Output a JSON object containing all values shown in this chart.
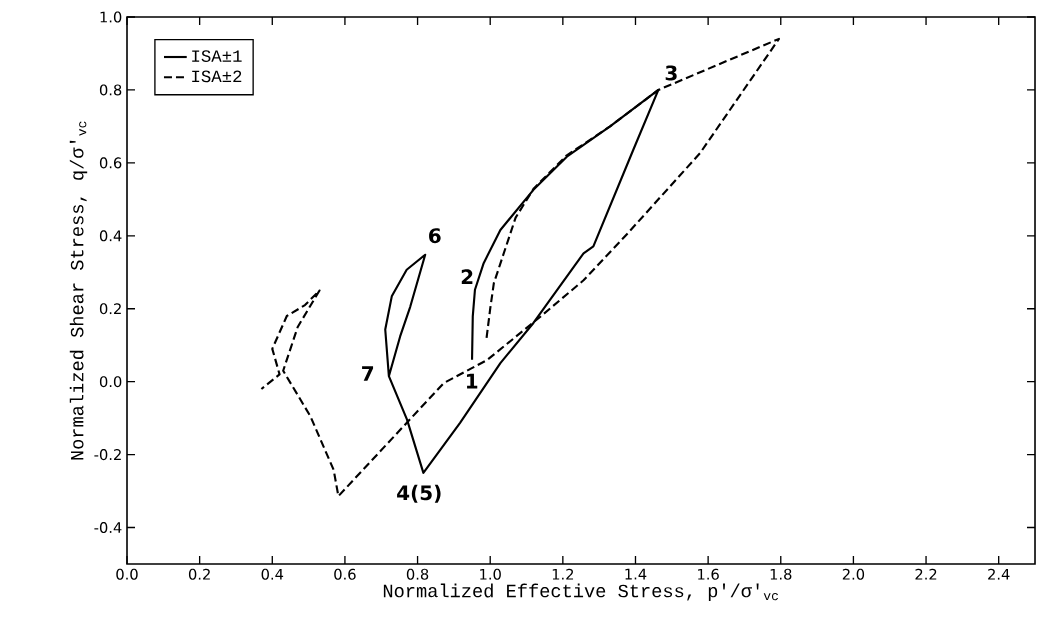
{
  "chart_data": {
    "type": "line",
    "xlabel": "Normalized Effective Stress, p'/σ'$_{vc}$",
    "ylabel": "Normalized Shear Stress, q/σ'$_{vc}$",
    "xlim": [
      0,
      2.5
    ],
    "ylim": [
      -0.5,
      1.0
    ],
    "xticks": [
      {
        "value": 0,
        "label": "0.0"
      },
      0.2,
      0.4,
      0.6,
      0.8,
      {
        "value": 1,
        "label": "1.0"
      },
      1.2,
      1.4,
      1.6,
      1.8,
      {
        "value": 2,
        "label": "2.0"
      },
      2.2,
      2.4
    ],
    "yticks": [
      -0.4,
      -0.2,
      {
        "value": 0,
        "label": "0.0"
      },
      0.2,
      0.4,
      0.6,
      0.8,
      {
        "value": 1,
        "label": "1.0"
      }
    ],
    "grid": false,
    "legend": "top left",
    "marker": "none",
    "series": [
      {
        "name": "ISA±1",
        "color": "#000000",
        "line_style": "solid",
        "x": [
          0.95,
          0.952,
          0.958,
          0.982,
          1.028,
          1.119,
          1.211,
          1.33,
          1.463,
          1.394,
          1.284,
          1.257,
          1.119,
          1.028,
          0.917,
          0.816,
          0.771,
          0.721,
          0.752,
          0.78,
          0.821,
          0.77,
          0.729,
          0.711,
          0.721
        ],
        "values": [
          0.06,
          0.179,
          0.252,
          0.325,
          0.416,
          0.526,
          0.617,
          0.7,
          0.8,
          0.636,
          0.371,
          0.352,
          0.161,
          0.051,
          -0.113,
          -0.25,
          -0.104,
          0.015,
          0.124,
          0.206,
          0.348,
          0.307,
          0.234,
          0.143,
          0.015
        ]
      },
      {
        "name": "ISA±2",
        "color": "#000000",
        "line_style": "dashed",
        "x": [
          0.99,
          1.0,
          1.01,
          1.03,
          1.07,
          1.12,
          1.21,
          1.33,
          1.463,
          1.795,
          1.578,
          1.377,
          1.257,
          1.138,
          0.991,
          0.872,
          0.582,
          0.569,
          0.505,
          0.43,
          0.47,
          0.53,
          0.49,
          0.44,
          0.4,
          0.42,
          0.37
        ],
        "values": [
          0.12,
          0.2,
          0.27,
          0.33,
          0.45,
          0.53,
          0.62,
          0.7,
          0.8,
          0.94,
          0.627,
          0.405,
          0.278,
          0.178,
          0.059,
          -0.004,
          -0.314,
          -0.242,
          -0.095,
          0.03,
          0.15,
          0.25,
          0.21,
          0.18,
          0.09,
          0.02,
          -0.02
        ]
      }
    ],
    "annotations": [
      {
        "text": "1",
        "x": 0.95,
        "y": 0.06
      },
      {
        "text": "2",
        "x": 0.982,
        "y": 0.325
      },
      {
        "text": "3",
        "x": 1.463,
        "y": 0.8
      },
      {
        "text": "4(5)",
        "x": 0.816,
        "y": -0.25
      },
      {
        "text": "6",
        "x": 0.821,
        "y": 0.348
      },
      {
        "text": "7",
        "x": 0.721,
        "y": 0.015
      }
    ]
  }
}
